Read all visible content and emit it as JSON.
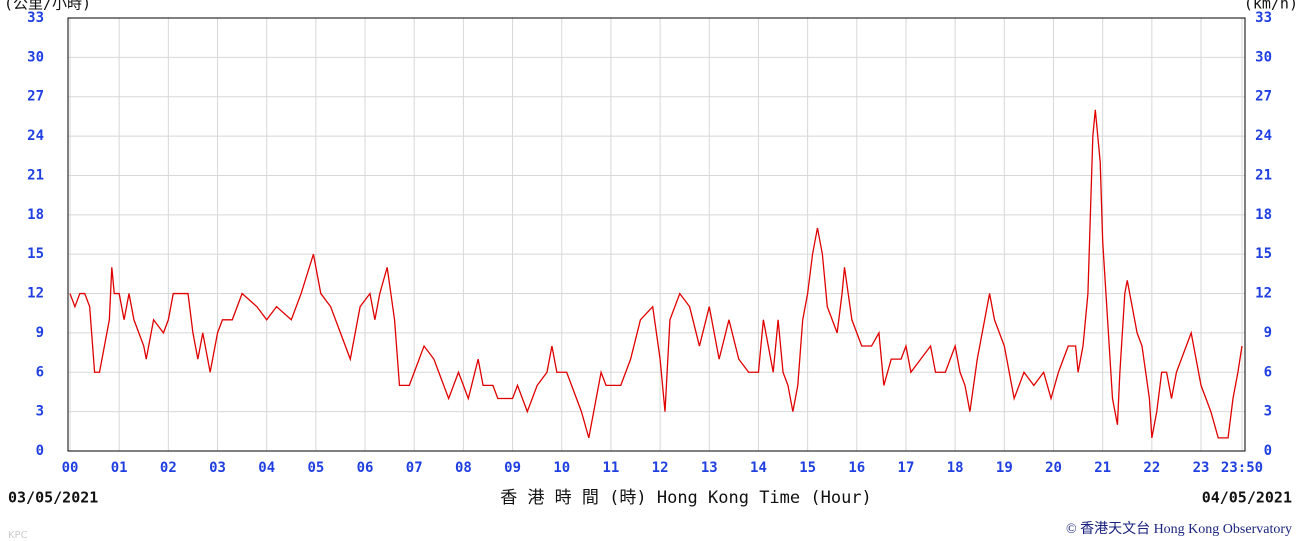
{
  "chart_data": {
    "type": "line",
    "y_label_left": "(公里/小時)",
    "y_label_right": "(km/h)",
    "x_label": "香 港 時 間 (時)  Hong Kong Time (Hour)",
    "start_date": "03/05/2021",
    "end_date": "04/05/2021",
    "source": "© 香港天文台 Hong Kong Observatory",
    "watermark": "KPC",
    "xlim": [
      0,
      23.8333
    ],
    "xticks": [
      {
        "value": 0,
        "label": "00"
      },
      {
        "value": 1,
        "label": "01"
      },
      {
        "value": 2,
        "label": "02"
      },
      {
        "value": 3,
        "label": "03"
      },
      {
        "value": 4,
        "label": "04"
      },
      {
        "value": 5,
        "label": "05"
      },
      {
        "value": 6,
        "label": "06"
      },
      {
        "value": 7,
        "label": "07"
      },
      {
        "value": 8,
        "label": "08"
      },
      {
        "value": 9,
        "label": "09"
      },
      10,
      11,
      12,
      13,
      14,
      15,
      16,
      17,
      18,
      19,
      20,
      21,
      22,
      23,
      {
        "value": 23.8333,
        "label": "23:50"
      }
    ],
    "ylim": [
      0,
      33
    ],
    "yticks": [
      0,
      3,
      6,
      9,
      12,
      15,
      18,
      21,
      24,
      27,
      30,
      33
    ],
    "grid": true,
    "series": [
      {
        "color": "#e00000",
        "x": [
          0,
          0.1,
          0.2,
          0.3,
          0.4,
          0.5,
          0.6,
          0.7,
          0.8,
          0.85,
          0.9,
          1.0,
          1.1,
          1.2,
          1.3,
          1.5,
          1.55,
          1.7,
          1.9,
          2.0,
          2.1,
          2.4,
          2.5,
          2.6,
          2.7,
          2.85,
          3.0,
          3.1,
          3.3,
          3.5,
          3.8,
          4.0,
          4.2,
          4.5,
          4.7,
          4.95,
          5.1,
          5.3,
          5.5,
          5.7,
          5.9,
          6.1,
          6.2,
          6.3,
          6.45,
          6.6,
          6.7,
          6.9,
          7.0,
          7.2,
          7.4,
          7.5,
          7.7,
          7.9,
          8.1,
          8.3,
          8.4,
          8.6,
          8.7,
          9.0,
          9.1,
          9.3,
          9.5,
          9.7,
          9.8,
          9.9,
          10.1,
          10.2,
          10.4,
          10.55,
          10.7,
          10.8,
          10.9,
          11.2,
          11.4,
          11.6,
          11.85,
          12.0,
          12.1,
          12.2,
          12.4,
          12.6,
          12.8,
          13.0,
          13.2,
          13.4,
          13.6,
          13.8,
          14.0,
          14.1,
          14.3,
          14.4,
          14.5,
          14.6,
          14.7,
          14.8,
          14.9,
          15.0,
          15.1,
          15.2,
          15.3,
          15.4,
          15.6,
          15.7,
          15.75,
          15.9,
          16.1,
          16.3,
          16.45,
          16.55,
          16.7,
          16.9,
          17.0,
          17.1,
          17.3,
          17.5,
          17.6,
          17.8,
          18.0,
          18.1,
          18.2,
          18.3,
          18.45,
          18.6,
          18.7,
          18.8,
          19.0,
          19.2,
          19.4,
          19.6,
          19.8,
          19.95,
          20.1,
          20.2,
          20.3,
          20.45,
          20.5,
          20.6,
          20.7,
          20.8,
          20.85,
          20.95,
          21.0,
          21.1,
          21.2,
          21.3,
          21.35,
          21.45,
          21.5,
          21.6,
          21.7,
          21.8,
          21.95,
          22.0,
          22.1,
          22.2,
          22.3,
          22.4,
          22.5,
          22.7,
          22.8,
          22.9,
          23.0,
          23.2,
          23.35,
          23.55,
          23.65,
          23.75,
          23.8333
        ],
        "values": [
          12,
          11,
          12,
          12,
          11,
          6,
          6,
          8,
          10,
          14,
          12,
          12,
          10,
          12,
          10,
          8,
          7,
          10,
          9,
          10,
          12,
          12,
          9,
          7,
          9,
          6,
          9,
          10,
          10,
          12,
          11,
          10,
          11,
          10,
          12,
          15,
          12,
          11,
          9,
          7,
          11,
          12,
          10,
          12,
          14,
          10,
          5,
          5,
          6,
          8,
          7,
          6,
          4,
          6,
          4,
          7,
          5,
          5,
          4,
          4,
          5,
          3,
          5,
          6,
          8,
          6,
          6,
          5,
          3,
          1,
          4,
          6,
          5,
          5,
          7,
          10,
          11,
          7,
          3,
          10,
          12,
          11,
          8,
          11,
          7,
          10,
          7,
          6,
          6,
          10,
          6,
          10,
          6,
          5,
          3,
          5,
          10,
          12,
          15,
          17,
          15,
          11,
          9,
          12,
          14,
          10,
          8,
          8,
          9,
          5,
          7,
          7,
          8,
          6,
          7,
          8,
          6,
          6,
          8,
          6,
          5,
          3,
          7,
          10,
          12,
          10,
          8,
          4,
          6,
          5,
          6,
          4,
          6,
          7,
          8,
          8,
          6,
          8,
          12,
          24,
          26,
          22,
          16,
          10,
          4,
          2,
          6,
          12,
          13,
          11,
          9,
          8,
          4,
          1,
          3,
          6,
          6,
          4,
          6,
          8,
          9,
          7,
          5,
          3,
          1,
          1,
          4,
          6,
          8
        ]
      }
    ]
  }
}
